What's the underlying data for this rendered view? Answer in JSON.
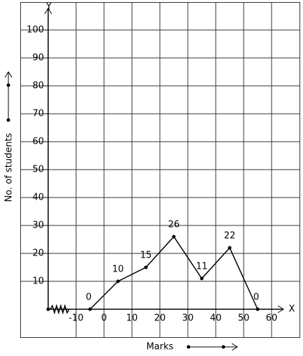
{
  "chart_data": {
    "type": "line",
    "x_axis_label": "X",
    "y_axis_label": "Y",
    "x_title": "Marks",
    "y_title": "No. of students",
    "x": [
      -5,
      5,
      15,
      25,
      35,
      45,
      55
    ],
    "values": [
      0,
      10,
      15,
      26,
      11,
      22,
      0
    ],
    "color": "#000000",
    "xlim": [
      -30,
      70
    ],
    "xticks": [
      -10,
      0,
      10,
      20,
      30,
      40,
      50,
      60
    ],
    "ylim": [
      -10,
      110
    ],
    "yticks": [
      10,
      20,
      30,
      40,
      50,
      60,
      70,
      80,
      90,
      100
    ],
    "grid": true
  }
}
